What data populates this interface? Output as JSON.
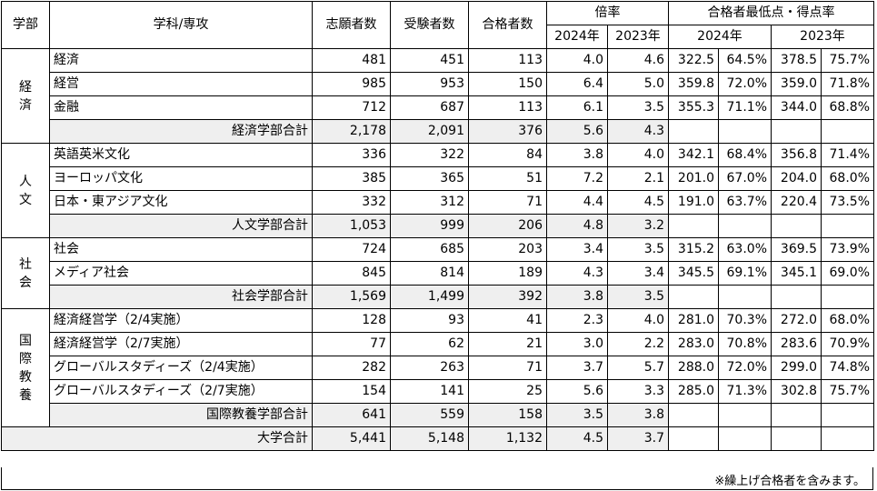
{
  "headers": {
    "dept": "学部",
    "major": "学科/専攻",
    "applicants": "志願者数",
    "examinees": "受験者数",
    "passers": "合格者数",
    "ratio": "倍率",
    "ratio_2024": "2024年",
    "ratio_2023": "2023年",
    "min_score": "合格者最低点・得点率",
    "min_2024": "2024年",
    "min_2023": "2023年"
  },
  "groups": [
    {
      "dept": "経済",
      "rows": [
        {
          "name": "経済",
          "app": "481",
          "exam": "451",
          "pass": "113",
          "r24": "4.0",
          "r23": "4.6",
          "s24": "322.5",
          "p24": "64.5%",
          "s23": "378.5",
          "p23": "75.7%"
        },
        {
          "name": "経営",
          "app": "985",
          "exam": "953",
          "pass": "150",
          "r24": "6.4",
          "r23": "5.0",
          "s24": "359.8",
          "p24": "72.0%",
          "s23": "359.0",
          "p23": "71.8%"
        },
        {
          "name": "金融",
          "app": "712",
          "exam": "687",
          "pass": "113",
          "r24": "6.1",
          "r23": "3.5",
          "s24": "355.3",
          "p24": "71.1%",
          "s23": "344.0",
          "p23": "68.8%"
        }
      ],
      "subtotal": {
        "name": "経済学部合計",
        "app": "2,178",
        "exam": "2,091",
        "pass": "376",
        "r24": "5.6",
        "r23": "4.3"
      }
    },
    {
      "dept": "人文",
      "rows": [
        {
          "name": "英語英米文化",
          "app": "336",
          "exam": "322",
          "pass": "84",
          "r24": "3.8",
          "r23": "4.0",
          "s24": "342.1",
          "p24": "68.4%",
          "s23": "356.8",
          "p23": "71.4%"
        },
        {
          "name": "ヨーロッパ文化",
          "app": "385",
          "exam": "365",
          "pass": "51",
          "r24": "7.2",
          "r23": "2.1",
          "s24": "201.0",
          "p24": "67.0%",
          "s23": "204.0",
          "p23": "68.0%"
        },
        {
          "name": "日本・東アジア文化",
          "app": "332",
          "exam": "312",
          "pass": "71",
          "r24": "4.4",
          "r23": "4.5",
          "s24": "191.0",
          "p24": "63.7%",
          "s23": "220.4",
          "p23": "73.5%"
        }
      ],
      "subtotal": {
        "name": "人文学部合計",
        "app": "1,053",
        "exam": "999",
        "pass": "206",
        "r24": "4.8",
        "r23": "3.2"
      }
    },
    {
      "dept": "社会",
      "rows": [
        {
          "name": "社会",
          "app": "724",
          "exam": "685",
          "pass": "203",
          "r24": "3.4",
          "r23": "3.5",
          "s24": "315.2",
          "p24": "63.0%",
          "s23": "369.5",
          "p23": "73.9%"
        },
        {
          "name": "メディア社会",
          "app": "845",
          "exam": "814",
          "pass": "189",
          "r24": "4.3",
          "r23": "3.4",
          "s24": "345.5",
          "p24": "69.1%",
          "s23": "345.1",
          "p23": "69.0%"
        }
      ],
      "subtotal": {
        "name": "社会学部合計",
        "app": "1,569",
        "exam": "1,499",
        "pass": "392",
        "r24": "3.8",
        "r23": "3.5"
      }
    },
    {
      "dept": "国際教養",
      "rows": [
        {
          "name": "経済経営学（2/4実施）",
          "app": "128",
          "exam": "93",
          "pass": "41",
          "r24": "2.3",
          "r23": "4.0",
          "s24": "281.0",
          "p24": "70.3%",
          "s23": "272.0",
          "p23": "68.0%"
        },
        {
          "name": "経済経営学（2/7実施）",
          "app": "77",
          "exam": "62",
          "pass": "21",
          "r24": "3.0",
          "r23": "2.2",
          "s24": "283.0",
          "p24": "70.8%",
          "s23": "283.6",
          "p23": "70.9%"
        },
        {
          "name": "グローバルスタディーズ（2/4実施）",
          "app": "282",
          "exam": "263",
          "pass": "71",
          "r24": "3.7",
          "r23": "5.7",
          "s24": "288.0",
          "p24": "72.0%",
          "s23": "299.0",
          "p23": "74.8%"
        },
        {
          "name": "グローバルスタディーズ（2/7実施）",
          "app": "154",
          "exam": "141",
          "pass": "25",
          "r24": "5.6",
          "r23": "3.3",
          "s24": "285.0",
          "p24": "71.3%",
          "s23": "302.8",
          "p23": "75.7%"
        }
      ],
      "subtotal": {
        "name": "国際教養学部合計",
        "app": "641",
        "exam": "559",
        "pass": "158",
        "r24": "3.5",
        "r23": "3.8"
      }
    }
  ],
  "total": {
    "name": "大学合計",
    "app": "5,441",
    "exam": "5,148",
    "pass": "1,132",
    "r24": "4.5",
    "r23": "3.7"
  },
  "footnote": "※繰上げ合格者を含みます。"
}
